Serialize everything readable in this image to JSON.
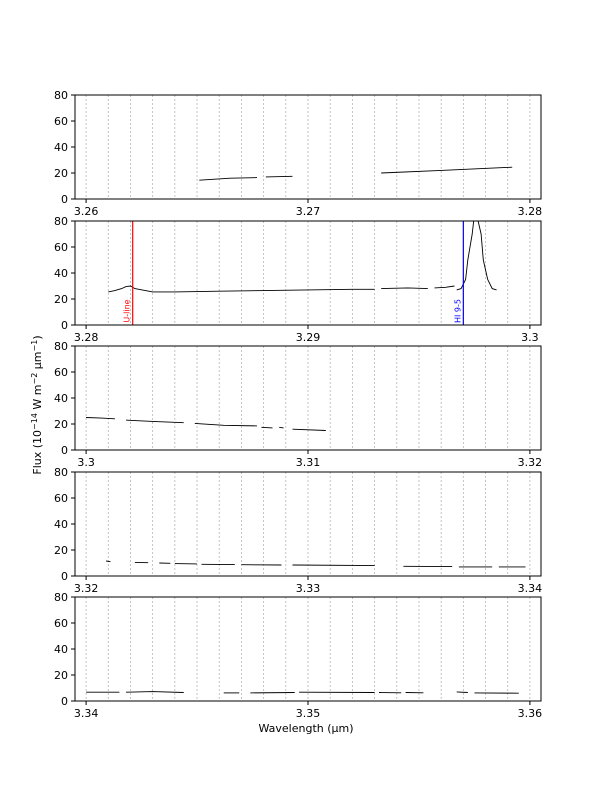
{
  "chart_data": {
    "type": "line",
    "ylabel": "Flux (10$^{-14}$ W m$^{-2}$ $\\mu$m$^{-1}$)",
    "xlabel": "Wavelength ($\\mu$m)",
    "ylabel_parts": [
      "Flux (10",
      "−14",
      " W m",
      "−2",
      " μm",
      "−1",
      ")"
    ],
    "xlabel_text": "Wavelength (μm)",
    "ylim": [
      0,
      80
    ],
    "yticks": [
      0,
      20,
      40,
      60,
      80
    ],
    "grid": "vertical dashed lines every 0.001 μm",
    "panels": [
      {
        "xlim": [
          3.2595,
          3.2805
        ],
        "xticks": [
          "3.26",
          "3.27",
          "3.28"
        ],
        "xtick_values": [
          3.26,
          3.27,
          3.28
        ],
        "segments": [
          {
            "x": [
              3.2651,
              3.2665,
              3.2677
            ],
            "y": [
              14.5,
              16.0,
              16.5
            ]
          },
          {
            "x": [
              3.2681,
              3.2693
            ],
            "y": [
              17.0,
              17.5
            ]
          },
          {
            "x": [
              3.2733,
              3.276,
              3.2792
            ],
            "y": [
              20.0,
              22.0,
              24.5
            ]
          }
        ],
        "annotations": []
      },
      {
        "xlim": [
          3.2795,
          3.3005
        ],
        "xticks": [
          "3.28",
          "3.29",
          "3.3"
        ],
        "xtick_values": [
          3.28,
          3.29,
          3.3
        ],
        "segments": [
          {
            "x": [
              3.281,
              3.2813,
              3.2816,
              3.2818,
              3.282,
              3.2822,
              3.283,
              3.284,
              3.286,
              3.288,
              3.29,
              3.292,
              3.293
            ],
            "y": [
              25.5,
              26.5,
              28.0,
              29.5,
              30.0,
              28.0,
              25.5,
              25.5,
              26.0,
              26.5,
              27.0,
              27.5,
              27.5
            ]
          },
          {
            "x": [
              3.2933,
              3.2945,
              3.2954
            ],
            "y": [
              28.0,
              28.5,
              28.0
            ]
          },
          {
            "x": [
              3.2957,
              3.2962,
              3.2966
            ],
            "y": [
              28.5,
              29.0,
              30.0
            ]
          },
          {
            "x": [
              3.2967,
              3.2969,
              3.2971,
              3.2972,
              3.2974,
              3.2975,
              3.2976,
              3.2978,
              3.2979,
              3.2981,
              3.2983,
              3.2985
            ],
            "y": [
              27.0,
              28.0,
              35.0,
              50.0,
              70.0,
              85.0,
              85.0,
              70.0,
              50.0,
              35.0,
              28.0,
              27.0
            ]
          }
        ],
        "annotations": [
          {
            "label": "U-line",
            "x": 3.2821,
            "color": "#ff0000"
          },
          {
            "label": "HI 9-5",
            "x": 3.297,
            "color": "#0000ff"
          }
        ]
      },
      {
        "xlim": [
          3.2995,
          3.3205
        ],
        "xticks": [
          "3.3",
          "3.31",
          "3.32"
        ],
        "xtick_values": [
          3.3,
          3.31,
          3.32
        ],
        "segments": [
          {
            "x": [
              3.3,
              3.3007,
              3.3013
            ],
            "y": [
              25.0,
              24.5,
              24.0
            ]
          },
          {
            "x": [
              3.3018,
              3.303,
              3.3044
            ],
            "y": [
              23.0,
              22.0,
              21.0
            ]
          },
          {
            "x": [
              3.3049,
              3.3062,
              3.3077
            ],
            "y": [
              20.5,
              19.0,
              18.5
            ]
          },
          {
            "x": [
              3.3079,
              3.3084
            ],
            "y": [
              17.5,
              17.0
            ]
          },
          {
            "x": [
              3.3087,
              3.3089
            ],
            "y": [
              17.5,
              17.0
            ]
          },
          {
            "x": [
              3.3093,
              3.3108
            ],
            "y": [
              16.0,
              15.0
            ]
          }
        ],
        "annotations": []
      },
      {
        "xlim": [
          3.3195,
          3.3405
        ],
        "xticks": [
          "3.32",
          "3.33",
          "3.34"
        ],
        "xtick_values": [
          3.32,
          3.33,
          3.34
        ],
        "segments": [
          {
            "x": [
              3.3209,
              3.3211
            ],
            "y": [
              11.5,
              11.0
            ]
          },
          {
            "x": [
              3.3222,
              3.3228
            ],
            "y": [
              10.5,
              10.2
            ]
          },
          {
            "x": [
              3.3233,
              3.3238
            ],
            "y": [
              10.0,
              9.8
            ]
          },
          {
            "x": [
              3.324,
              3.325
            ],
            "y": [
              9.5,
              9.3
            ]
          },
          {
            "x": [
              3.3252,
              3.3267
            ],
            "y": [
              9.0,
              8.8
            ]
          },
          {
            "x": [
              3.327,
              3.3288
            ],
            "y": [
              8.7,
              8.5
            ]
          },
          {
            "x": [
              3.3293,
              3.333
            ],
            "y": [
              8.5,
              8.0
            ]
          },
          {
            "x": [
              3.3343,
              3.3365
            ],
            "y": [
              7.5,
              7.2
            ]
          },
          {
            "x": [
              3.3368,
              3.3383
            ],
            "y": [
              7.0,
              7.0
            ]
          },
          {
            "x": [
              3.3386,
              3.3398
            ],
            "y": [
              7.0,
              7.0
            ]
          }
        ],
        "annotations": []
      },
      {
        "xlim": [
          3.3395,
          3.3605
        ],
        "xticks": [
          "3.34",
          "3.35",
          "3.36"
        ],
        "xtick_values": [
          3.34,
          3.35,
          3.36
        ],
        "segments": [
          {
            "x": [
              3.34,
              3.3415
            ],
            "y": [
              6.8,
              6.8
            ]
          },
          {
            "x": [
              3.3418,
              3.343,
              3.3444
            ],
            "y": [
              6.8,
              7.2,
              6.5
            ]
          },
          {
            "x": [
              3.3462,
              3.3469
            ],
            "y": [
              6.2,
              6.2
            ]
          },
          {
            "x": [
              3.3474,
              3.3494
            ],
            "y": [
              6.2,
              6.5
            ]
          },
          {
            "x": [
              3.3496,
              3.353
            ],
            "y": [
              6.8,
              6.5
            ]
          },
          {
            "x": [
              3.3532,
              3.3542
            ],
            "y": [
              6.5,
              6.3
            ]
          },
          {
            "x": [
              3.3544,
              3.3552
            ],
            "y": [
              6.5,
              6.3
            ]
          },
          {
            "x": [
              3.3567,
              3.3572
            ],
            "y": [
              7.0,
              6.5
            ]
          },
          {
            "x": [
              3.3575,
              3.3595
            ],
            "y": [
              6.2,
              6.0
            ]
          }
        ],
        "annotations": []
      }
    ]
  }
}
